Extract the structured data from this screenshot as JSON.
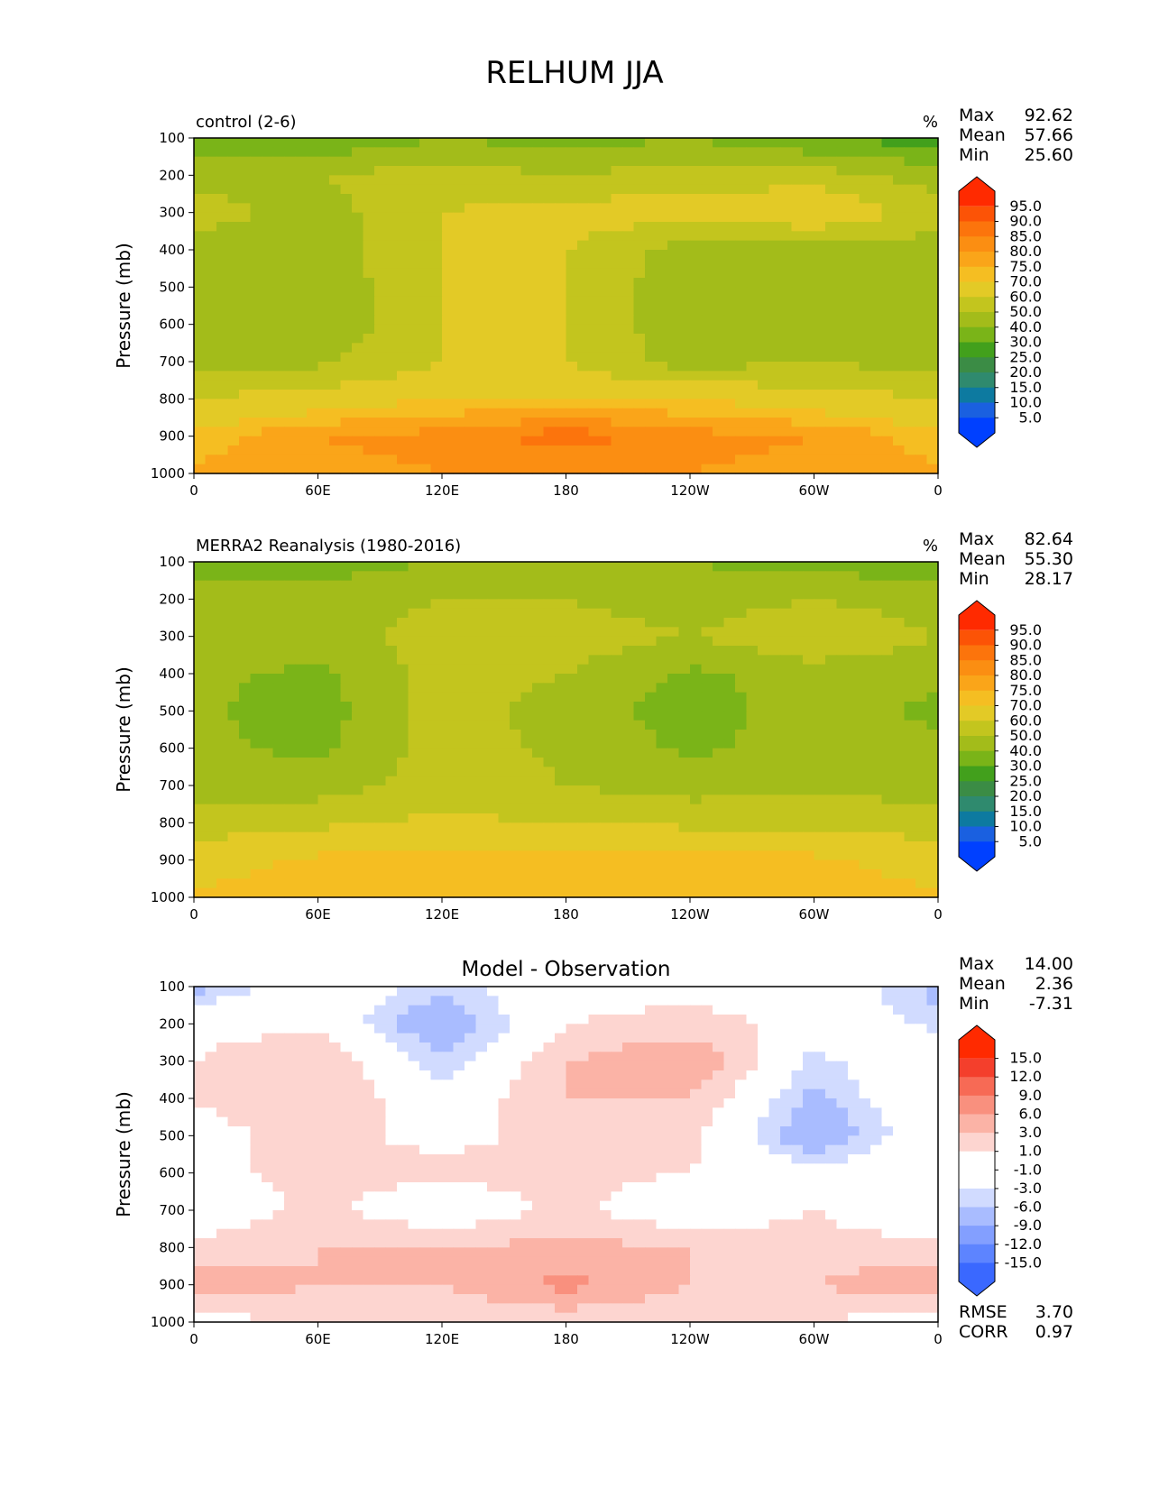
{
  "figure_title": "RELHUM JJA",
  "yaxis_label": "Pressure (mb)",
  "colors": {
    "abs_levels": [
      "#0040ff",
      "#1a60e0",
      "#0d7aa0",
      "#2f8a6e",
      "#3b8c45",
      "#42a01c",
      "#7ab418",
      "#a3bc1a",
      "#c3c51e",
      "#e3ca26",
      "#f5be22",
      "#faa519",
      "#fb8e12",
      "#fc740c",
      "#fc5306",
      "#ff2a00"
    ],
    "diff_levels": [
      "#0030ff",
      "#3a68ff",
      "#5d84ff",
      "#839fff",
      "#a9bcff",
      "#d1dbff",
      "#ffffff",
      "#ffffff",
      "#fdd5d0",
      "#fbb3a6",
      "#f9907e",
      "#f76a55",
      "#f43f2c",
      "#ff2a00"
    ]
  },
  "chart_data": [
    {
      "type": "heatmap",
      "title": "control (2-6)",
      "units": "%",
      "stats": [
        {
          "label": "Max",
          "value": "92.62"
        },
        {
          "label": "Mean",
          "value": "57.66"
        },
        {
          "label": "Min",
          "value": "25.60"
        }
      ],
      "xlabel": "",
      "ylabel": "Pressure (mb)",
      "x_ticks": [
        "0",
        "60E",
        "120E",
        "180",
        "120W",
        "60W",
        "0"
      ],
      "y_ticks": [
        "100",
        "200",
        "300",
        "400",
        "500",
        "600",
        "700",
        "800",
        "900",
        "1000"
      ],
      "xlim": [
        0,
        360
      ],
      "ylim": [
        1000,
        100
      ],
      "colorbar_ticks": [
        "95.0",
        "90.0",
        "85.0",
        "80.0",
        "75.0",
        "70.0",
        "60.0",
        "50.0",
        "40.0",
        "30.0",
        "25.0",
        "20.0",
        "15.0",
        "10.0",
        "5.0"
      ],
      "colorbar_levels": [
        5,
        10,
        15,
        20,
        25,
        30,
        40,
        50,
        60,
        70,
        75,
        80,
        85,
        90,
        95
      ],
      "field": {
        "columns_lon": [
          0,
          60,
          120,
          180,
          240,
          300,
          360
        ],
        "rows_pressure": [
          100,
          200,
          300,
          400,
          500,
          600,
          700,
          800,
          900,
          1000
        ],
        "values": [
          [
            35,
            30,
            40,
            35,
            40,
            30,
            25
          ],
          [
            45,
            50,
            55,
            50,
            55,
            55,
            45
          ],
          [
            55,
            45,
            60,
            65,
            65,
            70,
            55
          ],
          [
            45,
            45,
            60,
            60,
            45,
            45,
            45
          ],
          [
            45,
            42,
            60,
            60,
            42,
            48,
            42
          ],
          [
            45,
            42,
            60,
            60,
            42,
            50,
            42
          ],
          [
            45,
            48,
            60,
            60,
            45,
            50,
            45
          ],
          [
            60,
            65,
            70,
            70,
            70,
            65,
            60
          ],
          [
            72,
            80,
            82,
            88,
            82,
            80,
            72
          ],
          [
            76,
            78,
            80,
            80,
            80,
            78,
            76
          ]
        ]
      }
    },
    {
      "type": "heatmap",
      "title": "MERRA2 Reanalysis (1980-2016)",
      "units": "%",
      "stats": [
        {
          "label": "Max",
          "value": "82.64"
        },
        {
          "label": "Mean",
          "value": "55.30"
        },
        {
          "label": "Min",
          "value": "28.17"
        }
      ],
      "xlabel": "",
      "ylabel": "Pressure (mb)",
      "x_ticks": [
        "0",
        "60E",
        "120E",
        "180",
        "120W",
        "60W",
        "0"
      ],
      "y_ticks": [
        "100",
        "200",
        "300",
        "400",
        "500",
        "600",
        "700",
        "800",
        "900",
        "1000"
      ],
      "xlim": [
        0,
        360
      ],
      "ylim": [
        1000,
        100
      ],
      "colorbar_ticks": [
        "95.0",
        "90.0",
        "85.0",
        "80.0",
        "75.0",
        "70.0",
        "60.0",
        "50.0",
        "40.0",
        "30.0",
        "25.0",
        "20.0",
        "15.0",
        "10.0",
        "5.0"
      ],
      "colorbar_levels": [
        5,
        10,
        15,
        20,
        25,
        30,
        40,
        50,
        60,
        70,
        75,
        80,
        85,
        90,
        95
      ],
      "field": {
        "columns_lon": [
          0,
          60,
          120,
          180,
          240,
          300,
          360
        ],
        "rows_pressure": [
          100,
          200,
          300,
          400,
          500,
          600,
          700,
          800,
          900,
          1000
        ],
        "values": [
          [
            35,
            35,
            40,
            40,
            40,
            35,
            35
          ],
          [
            45,
            45,
            50,
            50,
            45,
            50,
            45
          ],
          [
            50,
            45,
            55,
            55,
            50,
            60,
            50
          ],
          [
            42,
            38,
            55,
            50,
            38,
            45,
            42
          ],
          [
            42,
            35,
            55,
            45,
            35,
            45,
            38
          ],
          [
            42,
            38,
            55,
            48,
            38,
            45,
            42
          ],
          [
            45,
            45,
            55,
            50,
            45,
            48,
            45
          ],
          [
            55,
            58,
            62,
            60,
            58,
            58,
            55
          ],
          [
            65,
            72,
            72,
            75,
            72,
            72,
            65
          ],
          [
            72,
            75,
            75,
            75,
            75,
            75,
            72
          ]
        ]
      }
    },
    {
      "type": "heatmap",
      "title": "Model - Observation",
      "units": "",
      "stats": [
        {
          "label": "Max",
          "value": "14.00"
        },
        {
          "label": "Mean",
          "value": "2.36"
        },
        {
          "label": "Min",
          "value": "-7.31"
        }
      ],
      "footer_stats": [
        {
          "label": "RMSE",
          "value": "3.70"
        },
        {
          "label": "CORR",
          "value": "0.97"
        }
      ],
      "xlabel": "",
      "ylabel": "Pressure (mb)",
      "x_ticks": [
        "0",
        "60E",
        "120E",
        "180",
        "120W",
        "60W",
        "0"
      ],
      "y_ticks": [
        "100",
        "200",
        "300",
        "400",
        "500",
        "600",
        "700",
        "800",
        "900",
        "1000"
      ],
      "xlim": [
        0,
        360
      ],
      "ylim": [
        1000,
        100
      ],
      "colorbar_ticks": [
        "15.0",
        "12.0",
        "9.0",
        "6.0",
        "3.0",
        "1.0",
        "-1.0",
        "-3.0",
        "-6.0",
        "-9.0",
        "-12.0",
        "-15.0"
      ],
      "colorbar_levels": [
        -15,
        -12,
        -9,
        -6,
        -3,
        -1,
        1,
        3,
        6,
        9,
        12,
        15
      ],
      "field": {
        "columns_lon": [
          0,
          60,
          120,
          180,
          240,
          300,
          360
        ],
        "rows_pressure": [
          100,
          200,
          300,
          400,
          500,
          600,
          700,
          800,
          900,
          1000
        ],
        "values": [
          [
            -4,
            2,
            -2,
            2,
            2,
            2,
            -4
          ],
          [
            2,
            2,
            -6,
            3,
            4,
            2,
            -2
          ],
          [
            3,
            6,
            -3,
            6,
            9,
            -2,
            3
          ],
          [
            3,
            6,
            0,
            6,
            6,
            -4,
            3
          ],
          [
            2,
            4,
            2,
            4,
            4,
            -6,
            2
          ],
          [
            2,
            4,
            4,
            4,
            3,
            0,
            2
          ],
          [
            0,
            4,
            0,
            4,
            0,
            3,
            0
          ],
          [
            4,
            6,
            6,
            7,
            6,
            4,
            4
          ],
          [
            8,
            6,
            6,
            10,
            6,
            6,
            9
          ],
          [
            1,
            4,
            3,
            4,
            3,
            3,
            1
          ]
        ]
      }
    }
  ]
}
